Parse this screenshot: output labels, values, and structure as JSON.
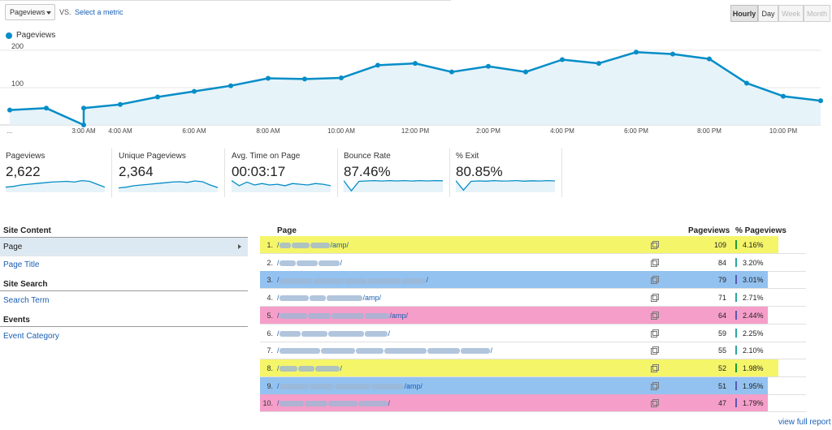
{
  "controls": {
    "metric_select": "Pageviews",
    "vs_label": "VS.",
    "select_metric_link": "Select a metric",
    "granularity": [
      "Hourly",
      "Day",
      "Week",
      "Month"
    ]
  },
  "colors": {
    "line": "#058dc7",
    "area": "#e6f3f9",
    "highlight_yellow": "#f5f56a",
    "highlight_blue": "#93c2f0",
    "highlight_pink": "#f59ec9",
    "bar_green": "#1a9e3a",
    "bar_teal": "#2aa6a6",
    "bar_purple": "#5a5ab0"
  },
  "chart_data": {
    "type": "line",
    "series": [
      {
        "name": "Pageviews",
        "values": [
          40,
          45,
          0,
          45,
          55,
          75,
          90,
          105,
          125,
          123,
          126,
          160,
          165,
          142,
          157,
          142,
          175,
          165,
          195,
          190,
          177,
          112,
          77,
          65
        ]
      }
    ],
    "y_ticks": [
      "200",
      "100"
    ],
    "x_ticks": [
      "...",
      "3:00 AM",
      "4:00 AM",
      "6:00 AM",
      "8:00 AM",
      "10:00 AM",
      "12:00 PM",
      "2:00 PM",
      "4:00 PM",
      "6:00 PM",
      "8:00 PM",
      "10:00 PM"
    ],
    "ylim": [
      0,
      200
    ],
    "grid": true
  },
  "legend": {
    "label": "Pageviews"
  },
  "scorecards": [
    {
      "label": "Pageviews",
      "value": "2,622",
      "spark": [
        0.35,
        0.4,
        0.5,
        0.55,
        0.6,
        0.65,
        0.7,
        0.72,
        0.75,
        0.7,
        0.8,
        0.75,
        0.55,
        0.35
      ]
    },
    {
      "label": "Unique Pageviews",
      "value": "2,364",
      "spark": [
        0.3,
        0.35,
        0.45,
        0.5,
        0.55,
        0.6,
        0.65,
        0.7,
        0.72,
        0.68,
        0.78,
        0.72,
        0.5,
        0.32
      ]
    },
    {
      "label": "Avg. Time on Page",
      "value": "00:03:17",
      "spark": [
        0.8,
        0.45,
        0.7,
        0.5,
        0.6,
        0.5,
        0.55,
        0.45,
        0.6,
        0.55,
        0.5,
        0.6,
        0.55,
        0.45
      ]
    },
    {
      "label": "Bounce Rate",
      "value": "87.46%",
      "spark": [
        0.8,
        0.1,
        0.75,
        0.78,
        0.8,
        0.77,
        0.8,
        0.78,
        0.8,
        0.77,
        0.8,
        0.78,
        0.8,
        0.79
      ]
    },
    {
      "label": "% Exit",
      "value": "80.85%",
      "spark": [
        0.8,
        0.15,
        0.75,
        0.78,
        0.76,
        0.8,
        0.77,
        0.78,
        0.8,
        0.76,
        0.79,
        0.77,
        0.8,
        0.78
      ]
    }
  ],
  "nav": {
    "site_content": "Site Content",
    "page": "Page",
    "page_title": "Page Title",
    "site_search": "Site Search",
    "search_term": "Search Term",
    "events": "Events",
    "event_category": "Event Category"
  },
  "table": {
    "headers": {
      "page": "Page",
      "pageviews": "Pageviews",
      "pct_pageviews": "% Pageviews"
    },
    "rows": [
      {
        "num": "1.",
        "prefix": "/",
        "suffix": "/amp/",
        "pageviews": "109",
        "pct": "4.16%",
        "highlight": "yellow",
        "bar": "green",
        "blurs": [
          14,
          22,
          24
        ]
      },
      {
        "num": "2.",
        "prefix": "/",
        "suffix": "/",
        "pageviews": "84",
        "pct": "3.20%",
        "highlight": "none",
        "bar": "teal",
        "blurs": [
          20,
          26,
          26
        ]
      },
      {
        "num": "3.",
        "prefix": "/",
        "suffix": "/",
        "pageviews": "79",
        "pct": "3.01%",
        "highlight": "blue",
        "bar": "purple",
        "blurs": [
          40,
          38,
          28,
          40,
          30
        ]
      },
      {
        "num": "4.",
        "prefix": "/",
        "suffix": "/amp/",
        "pageviews": "71",
        "pct": "2.71%",
        "highlight": "none",
        "bar": "teal",
        "blurs": [
          36,
          20,
          44
        ]
      },
      {
        "num": "5.",
        "prefix": "/",
        "suffix": "/amp/",
        "pageviews": "64",
        "pct": "2.44%",
        "highlight": "pink",
        "bar": "purple",
        "blurs": [
          34,
          28,
          40,
          30
        ]
      },
      {
        "num": "6.",
        "prefix": "/",
        "suffix": "/",
        "pageviews": "59",
        "pct": "2.25%",
        "highlight": "none",
        "bar": "teal",
        "blurs": [
          26,
          32,
          44,
          28
        ]
      },
      {
        "num": "7.",
        "prefix": "/",
        "suffix": "/",
        "pageviews": "55",
        "pct": "2.10%",
        "highlight": "none",
        "bar": "teal",
        "blurs": [
          50,
          42,
          34,
          52,
          40,
          36
        ]
      },
      {
        "num": "8.",
        "prefix": "/",
        "suffix": "/",
        "pageviews": "52",
        "pct": "1.98%",
        "highlight": "yellow",
        "bar": "green",
        "blurs": [
          22,
          20,
          30
        ]
      },
      {
        "num": "9.",
        "prefix": "/",
        "suffix": "/amp/",
        "pageviews": "51",
        "pct": "1.95%",
        "highlight": "blue",
        "bar": "purple",
        "blurs": [
          36,
          30,
          44,
          40
        ]
      },
      {
        "num": "10.",
        "prefix": "/",
        "suffix": "/",
        "pageviews": "47",
        "pct": "1.79%",
        "highlight": "pink",
        "bar": "purple",
        "blurs": [
          30,
          28,
          36,
          36
        ]
      }
    ]
  },
  "view_full_report": "view full report"
}
